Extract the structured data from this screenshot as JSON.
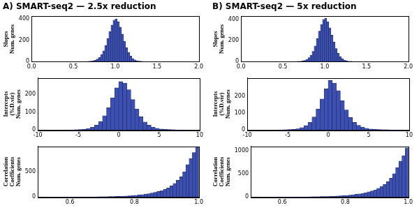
{
  "chart_data": [
    {
      "type": "histogram",
      "title": "A) SMART-seq2 — 2.5x reduction",
      "y_label": "Slopes\nNum. genes",
      "color": "#3b50b2",
      "grid": false,
      "bins": [
        0.55,
        0.575,
        0.6,
        0.625,
        0.65,
        0.675,
        0.7,
        0.725,
        0.75,
        0.775,
        0.8,
        0.825,
        0.85,
        0.875,
        0.9,
        0.925,
        0.95,
        0.975,
        1.0,
        1.025,
        1.05,
        1.075,
        1.1,
        1.125,
        1.15,
        1.175,
        1.2,
        1.225,
        1.25,
        1.275,
        1.3,
        1.325,
        1.35,
        1.375,
        1.4,
        1.425,
        1.45
      ],
      "counts": [
        0,
        0,
        1,
        1,
        2,
        3,
        5,
        8,
        14,
        24,
        40,
        65,
        100,
        150,
        215,
        280,
        340,
        385,
        395,
        370,
        320,
        255,
        190,
        130,
        85,
        52,
        30,
        17,
        9,
        5,
        3,
        2,
        1,
        1,
        0,
        0
      ],
      "xlim": [
        0,
        2
      ],
      "xticks": [
        {
          "value": 0,
          "label": "0.0"
        },
        0.5,
        {
          "value": 1,
          "label": "1.0"
        },
        1.5,
        {
          "value": 2,
          "label": "2.0"
        }
      ],
      "ylim": [
        0,
        420
      ],
      "yticks": [
        0,
        200,
        400
      ]
    },
    {
      "type": "histogram",
      "y_label": "Intercepts\n(%D.vir)\nNum. genes",
      "color": "#3b50b2",
      "grid": false,
      "bins": [
        -7,
        -6.5,
        -6,
        -5.5,
        -5,
        -4.5,
        -4,
        -3.5,
        -3,
        -2.5,
        -2,
        -1.5,
        -1,
        -0.5,
        0,
        0.5,
        1,
        1.5,
        2,
        2.5,
        3,
        3.5,
        4,
        4.5,
        5,
        5.5,
        6,
        6.5,
        7,
        7.5,
        8,
        8.5,
        9
      ],
      "counts": [
        0,
        1,
        1,
        2,
        3,
        5,
        9,
        16,
        28,
        48,
        80,
        125,
        180,
        235,
        270,
        262,
        225,
        170,
        118,
        75,
        45,
        27,
        16,
        10,
        6,
        4,
        3,
        2,
        1,
        1,
        1,
        0
      ],
      "xlim": [
        -10,
        10
      ],
      "xticks": [
        -10,
        -5,
        0,
        5,
        10
      ],
      "ylim": [
        0,
        290
      ],
      "yticks": [
        0,
        100,
        200
      ]
    },
    {
      "type": "histogram",
      "y_label": "Correlation\nCoefficients\nNum. genes",
      "color": "#3b50b2",
      "grid": false,
      "bins": [
        0.5,
        0.51,
        0.52,
        0.53,
        0.54,
        0.55,
        0.56,
        0.57,
        0.58,
        0.59,
        0.6,
        0.61,
        0.62,
        0.63,
        0.64,
        0.65,
        0.66,
        0.67,
        0.68,
        0.69,
        0.7,
        0.71,
        0.72,
        0.73,
        0.74,
        0.75,
        0.76,
        0.77,
        0.78,
        0.79,
        0.8,
        0.81,
        0.82,
        0.83,
        0.84,
        0.85,
        0.86,
        0.87,
        0.88,
        0.89,
        0.9,
        0.91,
        0.92,
        0.93,
        0.94,
        0.95,
        0.96,
        0.97,
        0.98,
        0.99,
        1.0
      ],
      "counts": [
        0,
        0,
        1,
        0,
        1,
        1,
        1,
        1,
        2,
        2,
        2,
        2,
        3,
        3,
        4,
        4,
        5,
        5,
        6,
        7,
        8,
        9,
        10,
        12,
        14,
        16,
        19,
        22,
        26,
        30,
        36,
        42,
        50,
        58,
        68,
        80,
        95,
        110,
        130,
        155,
        185,
        220,
        270,
        330,
        400,
        500,
        640,
        760,
        880,
        990
      ],
      "xlim": [
        0.5,
        1.0
      ],
      "xticks": [
        0.6,
        0.8,
        {
          "value": 1,
          "label": "1.0"
        }
      ],
      "ylim": [
        0,
        1000
      ],
      "yticks": [
        0,
        500
      ]
    },
    {
      "type": "histogram",
      "title": "B) SMART-seq2 — 5x reduction",
      "y_label": "Slopes\nNum. genes",
      "color": "#3b50b2",
      "grid": false,
      "bins": [
        0.55,
        0.575,
        0.6,
        0.625,
        0.65,
        0.675,
        0.7,
        0.725,
        0.75,
        0.775,
        0.8,
        0.825,
        0.85,
        0.875,
        0.9,
        0.925,
        0.95,
        0.975,
        1.0,
        1.025,
        1.05,
        1.075,
        1.1,
        1.125,
        1.15,
        1.175,
        1.2,
        1.225,
        1.25,
        1.275,
        1.3,
        1.325,
        1.35,
        1.375,
        1.4,
        1.425,
        1.45
      ],
      "counts": [
        0,
        0,
        1,
        1,
        2,
        3,
        4,
        7,
        12,
        22,
        38,
        62,
        98,
        150,
        218,
        290,
        352,
        400,
        410,
        380,
        322,
        252,
        185,
        125,
        80,
        48,
        28,
        16,
        8,
        4,
        3,
        2,
        1,
        1,
        0,
        0
      ],
      "xlim": [
        0,
        2
      ],
      "xticks": [
        {
          "value": 0,
          "label": "0.0"
        },
        0.5,
        {
          "value": 1,
          "label": "1.0"
        },
        1.5,
        {
          "value": 2,
          "label": "2.0"
        }
      ],
      "ylim": [
        0,
        430
      ],
      "yticks": [
        0,
        200,
        400
      ]
    },
    {
      "type": "histogram",
      "y_label": "Intercepts\n(%D.vir)\nNum. genes",
      "color": "#3b50b2",
      "grid": false,
      "bins": [
        -7,
        -6.5,
        -6,
        -5.5,
        -5,
        -4.5,
        -4,
        -3.5,
        -3,
        -2.5,
        -2,
        -1.5,
        -1,
        -0.5,
        0,
        0.5,
        1,
        1.5,
        2,
        2.5,
        3,
        3.5,
        4,
        4.5,
        5,
        5.5,
        6,
        6.5,
        7,
        7.5,
        8,
        8.5,
        9
      ],
      "counts": [
        0,
        1,
        1,
        2,
        3,
        4,
        8,
        15,
        27,
        46,
        78,
        125,
        185,
        245,
        295,
        280,
        235,
        175,
        120,
        76,
        46,
        28,
        18,
        11,
        7,
        5,
        3,
        2,
        2,
        1,
        1,
        1
      ],
      "xlim": [
        -10,
        10
      ],
      "xticks": [
        -10,
        -5,
        0,
        5,
        10
      ],
      "ylim": [
        0,
        310
      ],
      "yticks": [
        0,
        100,
        200
      ]
    },
    {
      "type": "histogram",
      "y_label": "Correlation\nCoefficients\nNum. genes",
      "color": "#3b50b2",
      "grid": false,
      "bins": [
        0.5,
        0.51,
        0.52,
        0.53,
        0.54,
        0.55,
        0.56,
        0.57,
        0.58,
        0.59,
        0.6,
        0.61,
        0.62,
        0.63,
        0.64,
        0.65,
        0.66,
        0.67,
        0.68,
        0.69,
        0.7,
        0.71,
        0.72,
        0.73,
        0.74,
        0.75,
        0.76,
        0.77,
        0.78,
        0.79,
        0.8,
        0.81,
        0.82,
        0.83,
        0.84,
        0.85,
        0.86,
        0.87,
        0.88,
        0.89,
        0.9,
        0.91,
        0.92,
        0.93,
        0.94,
        0.95,
        0.96,
        0.97,
        0.98,
        0.99,
        1.0
      ],
      "counts": [
        0,
        0,
        0,
        1,
        1,
        1,
        1,
        1,
        1,
        2,
        2,
        2,
        2,
        3,
        3,
        4,
        4,
        5,
        6,
        7,
        8,
        9,
        11,
        12,
        14,
        17,
        20,
        23,
        27,
        32,
        37,
        43,
        51,
        60,
        70,
        82,
        97,
        113,
        133,
        158,
        190,
        228,
        275,
        335,
        410,
        510,
        640,
        780,
        900,
        1070
      ],
      "xlim": [
        0.5,
        1.0
      ],
      "xticks": [
        0.6,
        0.8,
        {
          "value": 1,
          "label": "1.0"
        }
      ],
      "ylim": [
        0,
        1100
      ],
      "yticks": [
        0,
        500,
        1000
      ]
    }
  ]
}
